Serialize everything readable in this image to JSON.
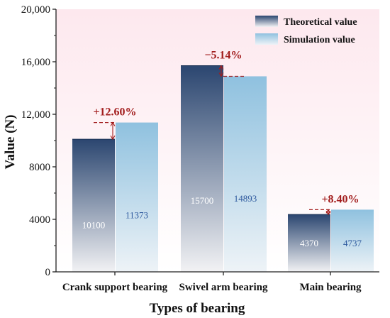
{
  "chart_data": {
    "type": "bar",
    "title": "",
    "xlabel": "Types of bearing",
    "ylabel": "Value (N)",
    "ylim": [
      0,
      20000
    ],
    "yticks": [
      0,
      4000,
      8000,
      12000,
      16000,
      20000
    ],
    "ytick_labels": [
      "0",
      "4000",
      "8000",
      "12,000",
      "16,000",
      "20,000"
    ],
    "categories": [
      "Crank support bearing",
      "Swivel arm bearing",
      "Main bearing"
    ],
    "series": [
      {
        "name": "Theoretical value",
        "values": [
          10100,
          15700,
          4370
        ],
        "labels": [
          "10100",
          "15700",
          "4370"
        ],
        "color_top": "#2b4670",
        "color_bottom": "#f2f2f4"
      },
      {
        "name": "Simulation value",
        "values": [
          11373,
          14893,
          4737
        ],
        "labels": [
          "11373",
          "14893",
          "4737"
        ],
        "color_top": "#8fc1df",
        "color_bottom": "#eef3f7"
      }
    ],
    "annotations": [
      "+12.60%",
      "−5.14%",
      "+8.40%"
    ],
    "annotation_color": "#a21d1d",
    "legend_position": "top-right",
    "grid": false,
    "background_gradient": [
      "#fde8ee",
      "#ffffff"
    ]
  }
}
